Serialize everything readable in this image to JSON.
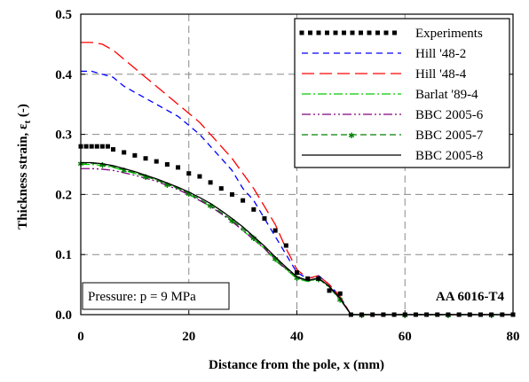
{
  "chart_data": {
    "type": "line",
    "title": "",
    "xlabel": "Distance from the pole, x (mm)",
    "ylabel": "Thickness strain, ε",
    "ylabel_sub": "t",
    "ylabel_unit": " (-)",
    "xlim": [
      0,
      80
    ],
    "ylim": [
      0,
      0.5
    ],
    "xticks": [
      0,
      20,
      40,
      60,
      80
    ],
    "yticks": [
      0.0,
      0.1,
      0.2,
      0.3,
      0.4,
      0.5
    ],
    "ytick_labels": [
      "0.0",
      "0.1",
      "0.2",
      "0.3",
      "0.4",
      "0.5"
    ],
    "xtick_labels": [
      "0",
      "20",
      "40",
      "60",
      "80"
    ],
    "grid": true,
    "legend_position": "top-right",
    "annotations": [
      {
        "text": "Pressure: p = 9 MPa",
        "style": "boxed"
      },
      {
        "text": "AA 6016-T4",
        "style": "bold"
      }
    ],
    "series": [
      {
        "name": "Experiments",
        "color": "#000000",
        "style": "markers",
        "x": [
          0,
          1,
          2,
          3,
          4,
          5,
          6,
          8,
          10,
          12,
          14,
          16,
          18,
          20,
          22,
          24,
          26,
          28,
          30,
          32,
          34,
          36,
          38,
          40,
          42,
          44,
          46,
          48,
          50,
          52,
          54,
          56,
          58,
          60,
          62,
          64,
          66,
          68,
          70,
          72,
          74,
          76,
          78,
          80
        ],
        "y": [
          0.28,
          0.28,
          0.28,
          0.28,
          0.28,
          0.28,
          0.275,
          0.27,
          0.265,
          0.26,
          0.255,
          0.25,
          0.245,
          0.235,
          0.23,
          0.22,
          0.21,
          0.2,
          0.19,
          0.175,
          0.16,
          0.14,
          0.115,
          0.07,
          0.06,
          0.06,
          0.04,
          0.035,
          0.0,
          0.0,
          0.0,
          0.0,
          0.0,
          0.0,
          0.0,
          0.0,
          0.0,
          0.0,
          0.0,
          0.0,
          0.0,
          0.0,
          0.0,
          0.0
        ]
      },
      {
        "name": "Hill '48-2",
        "color": "#0000ff",
        "style": "dash",
        "x": [
          0,
          2,
          4,
          6,
          8,
          10,
          12,
          14,
          16,
          18,
          20,
          22,
          24,
          26,
          28,
          30,
          32,
          34,
          36,
          38,
          40,
          42,
          44,
          46,
          48,
          50,
          52,
          56,
          60,
          64,
          68,
          72,
          76,
          80
        ],
        "y": [
          0.405,
          0.405,
          0.4,
          0.395,
          0.38,
          0.37,
          0.36,
          0.35,
          0.34,
          0.33,
          0.315,
          0.3,
          0.28,
          0.26,
          0.24,
          0.21,
          0.19,
          0.16,
          0.13,
          0.1,
          0.07,
          0.06,
          0.065,
          0.05,
          0.03,
          0.0,
          0.0,
          0.0,
          0.0,
          0.0,
          0.0,
          0.0,
          0.0,
          0.0
        ]
      },
      {
        "name": "Hill '48-4",
        "color": "#ff0000",
        "style": "longdash",
        "x": [
          0,
          2,
          4,
          6,
          8,
          10,
          12,
          14,
          16,
          18,
          20,
          22,
          24,
          26,
          28,
          30,
          32,
          34,
          36,
          38,
          40,
          42,
          44,
          46,
          48,
          50,
          52,
          56,
          60,
          64,
          68,
          72,
          76,
          80
        ],
        "y": [
          0.453,
          0.453,
          0.45,
          0.44,
          0.425,
          0.41,
          0.395,
          0.38,
          0.365,
          0.35,
          0.335,
          0.32,
          0.3,
          0.28,
          0.26,
          0.235,
          0.21,
          0.18,
          0.15,
          0.11,
          0.075,
          0.06,
          0.065,
          0.05,
          0.03,
          0.0,
          0.0,
          0.0,
          0.0,
          0.0,
          0.0,
          0.0,
          0.0,
          0.0
        ]
      },
      {
        "name": "Barlat '89-4",
        "color": "#00cc00",
        "style": "dashdot",
        "x": [
          0,
          2,
          4,
          6,
          8,
          10,
          12,
          14,
          16,
          18,
          20,
          22,
          24,
          26,
          28,
          30,
          32,
          34,
          36,
          38,
          40,
          42,
          44,
          46,
          48,
          50,
          52,
          56,
          60,
          64,
          68,
          72,
          76,
          80
        ],
        "y": [
          0.25,
          0.25,
          0.248,
          0.245,
          0.24,
          0.235,
          0.23,
          0.225,
          0.218,
          0.21,
          0.2,
          0.19,
          0.18,
          0.168,
          0.155,
          0.14,
          0.125,
          0.11,
          0.09,
          0.075,
          0.06,
          0.055,
          0.06,
          0.045,
          0.025,
          0.0,
          0.0,
          0.0,
          0.0,
          0.0,
          0.0,
          0.0,
          0.0,
          0.0
        ]
      },
      {
        "name": "BBC 2005-6",
        "color": "#800080",
        "style": "dashdotdot",
        "x": [
          0,
          2,
          4,
          6,
          8,
          10,
          12,
          14,
          16,
          18,
          20,
          22,
          24,
          26,
          28,
          30,
          32,
          34,
          36,
          38,
          40,
          42,
          44,
          46,
          48,
          50,
          52,
          56,
          60,
          64,
          68,
          72,
          76,
          80
        ],
        "y": [
          0.243,
          0.243,
          0.242,
          0.24,
          0.236,
          0.232,
          0.227,
          0.222,
          0.215,
          0.208,
          0.2,
          0.19,
          0.18,
          0.168,
          0.155,
          0.14,
          0.125,
          0.11,
          0.092,
          0.076,
          0.062,
          0.056,
          0.06,
          0.046,
          0.026,
          0.0,
          0.0,
          0.0,
          0.0,
          0.0,
          0.0,
          0.0,
          0.0,
          0.0
        ]
      },
      {
        "name": "BBC 2005-7",
        "color": "#008000",
        "style": "dash-star",
        "x": [
          0,
          2,
          4,
          6,
          8,
          10,
          12,
          14,
          16,
          18,
          20,
          22,
          24,
          26,
          28,
          30,
          32,
          34,
          36,
          38,
          40,
          42,
          44,
          46,
          48,
          50,
          52,
          56,
          60,
          64,
          68,
          72,
          76,
          80
        ],
        "y": [
          0.252,
          0.252,
          0.25,
          0.246,
          0.241,
          0.236,
          0.23,
          0.224,
          0.217,
          0.21,
          0.202,
          0.192,
          0.182,
          0.17,
          0.157,
          0.143,
          0.128,
          0.112,
          0.094,
          0.077,
          0.062,
          0.056,
          0.06,
          0.046,
          0.026,
          0.0,
          0.0,
          0.0,
          0.0,
          0.0,
          0.0,
          0.0,
          0.0,
          0.0
        ]
      },
      {
        "name": "BBC 2005-8",
        "color": "#000000",
        "style": "solid",
        "x": [
          0,
          2,
          4,
          6,
          8,
          10,
          12,
          14,
          16,
          18,
          20,
          22,
          24,
          26,
          28,
          30,
          32,
          34,
          36,
          38,
          40,
          42,
          44,
          46,
          48,
          50,
          52,
          56,
          60,
          64,
          68,
          72,
          76,
          80
        ],
        "y": [
          0.253,
          0.253,
          0.251,
          0.248,
          0.243,
          0.238,
          0.232,
          0.226,
          0.219,
          0.212,
          0.204,
          0.195,
          0.185,
          0.173,
          0.16,
          0.146,
          0.13,
          0.114,
          0.096,
          0.079,
          0.063,
          0.057,
          0.061,
          0.047,
          0.027,
          0.0,
          0.0,
          0.0,
          0.0,
          0.0,
          0.0,
          0.0,
          0.0,
          0.0
        ]
      }
    ]
  }
}
